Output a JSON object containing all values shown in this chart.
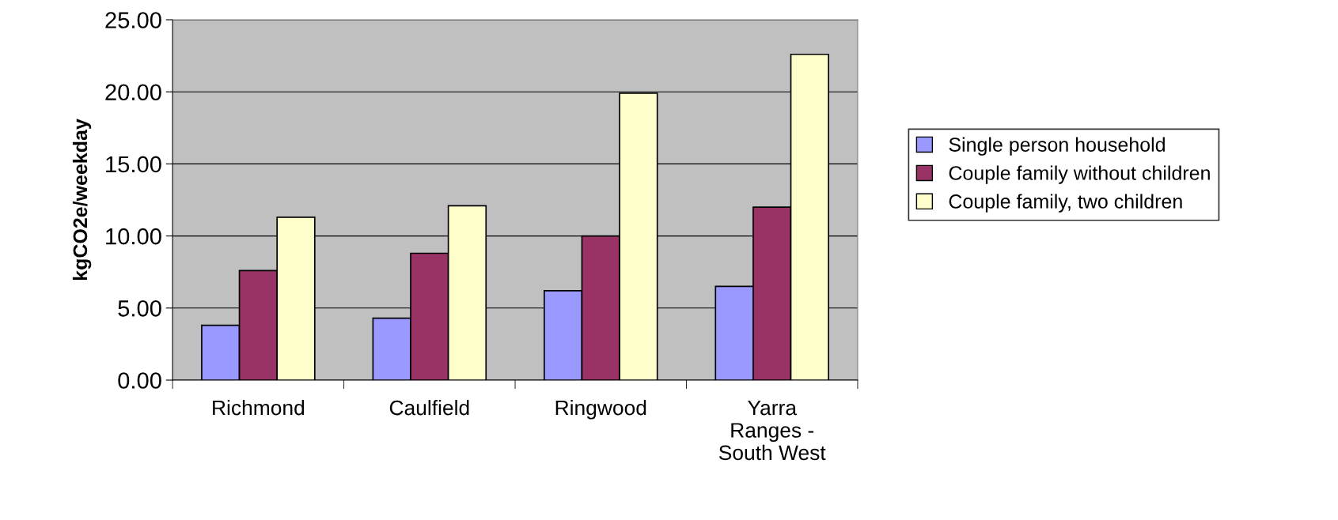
{
  "chart_data": {
    "type": "bar",
    "ylabel": "kgCO2e/weekday",
    "categories": [
      "Richmond",
      "Caulfield",
      "Ringwood",
      "Yarra\nRanges -\nSouth West"
    ],
    "series": [
      {
        "name": "Single person household",
        "color": "#9999ff",
        "values": [
          3.8,
          4.3,
          6.2,
          6.5
        ]
      },
      {
        "name": "Couple family without children",
        "color": "#993366",
        "values": [
          7.6,
          8.8,
          10.0,
          12.0
        ]
      },
      {
        "name": "Couple family, two children",
        "color": "#ffffcc",
        "values": [
          11.3,
          12.1,
          19.9,
          22.6
        ]
      }
    ],
    "ylim": [
      0,
      25
    ],
    "yticks": [
      {
        "value": 0,
        "label": "0.00"
      },
      {
        "value": 5,
        "label": "5.00"
      },
      {
        "value": 10,
        "label": "10.00"
      },
      {
        "value": 15,
        "label": "15.00"
      },
      {
        "value": 20,
        "label": "20.00"
      },
      {
        "value": 25,
        "label": "25.00"
      }
    ],
    "grid": "y",
    "legend": "right"
  }
}
